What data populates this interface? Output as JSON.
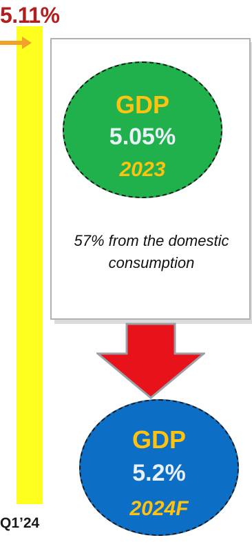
{
  "headline": {
    "value": "5.11%",
    "period": "Q1’24"
  },
  "gdp_2023": {
    "label": "GDP",
    "value": "5.05%",
    "year": "2023",
    "note": "57% from the domestic consumption"
  },
  "gdp_2024": {
    "label": "GDP",
    "value": "5.2%",
    "year": "2024F"
  },
  "colors": {
    "headline": "#b31d1d",
    "bar": "#ffff1f",
    "pointer": "#f2a12a",
    "circle_2023": "#20b14c",
    "circle_2024": "#0d6ec6",
    "gdp_text": "#ffc20e",
    "down_arrow": "#e8131a"
  }
}
